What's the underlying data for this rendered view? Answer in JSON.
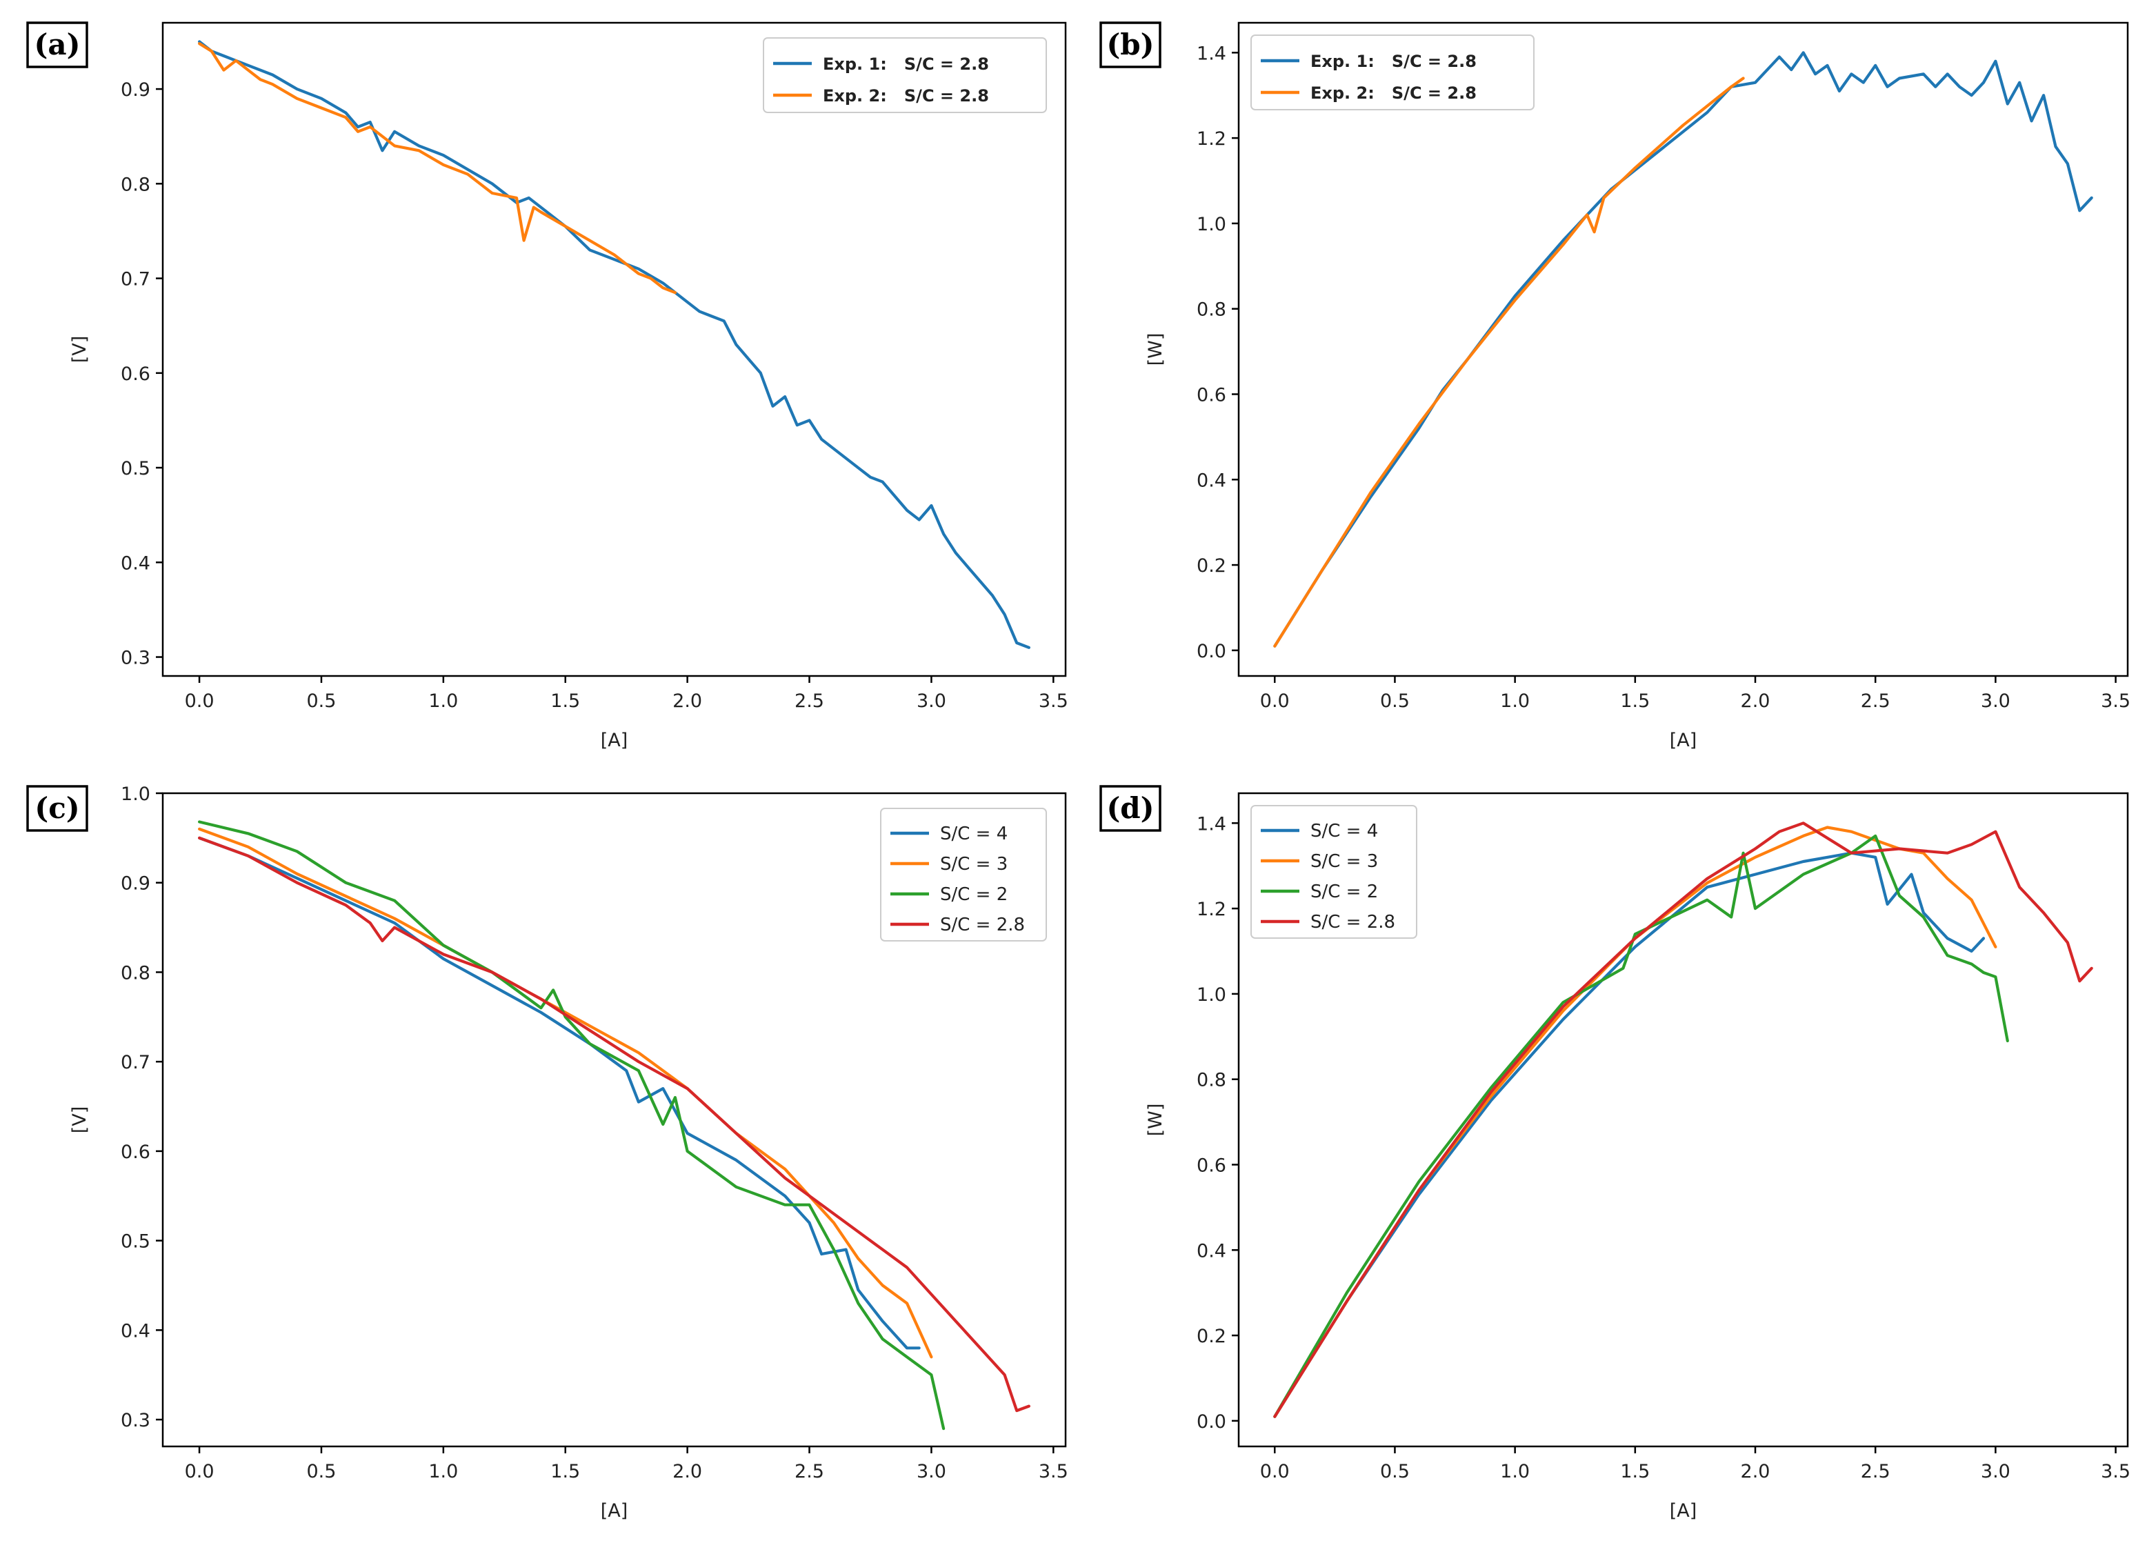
{
  "chart_data": [
    {
      "panel": "(a)",
      "type": "line",
      "xlabel": "[A]",
      "ylabel": "[V]",
      "xlim": [
        -0.15,
        3.55
      ],
      "ylim": [
        0.28,
        0.97
      ],
      "xticks": [
        0.0,
        0.5,
        1.0,
        1.5,
        2.0,
        2.5,
        3.0,
        3.5
      ],
      "xtick_labels": [
        "0.0",
        "0.5",
        "1.0",
        "1.5",
        "2.0",
        "2.5",
        "3.0",
        "3.5"
      ],
      "yticks": [
        0.3,
        0.4,
        0.5,
        0.6,
        0.7,
        0.8,
        0.9
      ],
      "ytick_labels": [
        "0.3",
        "0.4",
        "0.5",
        "0.6",
        "0.7",
        "0.8",
        "0.9"
      ],
      "legend_position": "upper-right",
      "legend_bold": true,
      "series": [
        {
          "name": "Exp. 1:   S/C = 2.8",
          "color": "#1f77b4",
          "x": [
            0.0,
            0.05,
            0.1,
            0.15,
            0.2,
            0.3,
            0.4,
            0.5,
            0.6,
            0.65,
            0.7,
            0.75,
            0.8,
            0.9,
            1.0,
            1.1,
            1.2,
            1.3,
            1.35,
            1.4,
            1.5,
            1.6,
            1.7,
            1.8,
            1.9,
            2.0,
            2.05,
            2.1,
            2.15,
            2.2,
            2.25,
            2.3,
            2.35,
            2.4,
            2.45,
            2.5,
            2.55,
            2.6,
            2.7,
            2.75,
            2.8,
            2.85,
            2.9,
            2.95,
            3.0,
            3.05,
            3.1,
            3.15,
            3.2,
            3.25,
            3.3,
            3.35,
            3.4
          ],
          "y": [
            0.95,
            0.94,
            0.935,
            0.93,
            0.925,
            0.915,
            0.9,
            0.89,
            0.875,
            0.86,
            0.865,
            0.835,
            0.855,
            0.84,
            0.83,
            0.815,
            0.8,
            0.78,
            0.785,
            0.775,
            0.755,
            0.73,
            0.72,
            0.71,
            0.695,
            0.675,
            0.665,
            0.66,
            0.655,
            0.63,
            0.615,
            0.6,
            0.565,
            0.575,
            0.545,
            0.55,
            0.53,
            0.52,
            0.5,
            0.49,
            0.485,
            0.47,
            0.455,
            0.445,
            0.46,
            0.43,
            0.41,
            0.395,
            0.38,
            0.365,
            0.345,
            0.315,
            0.31
          ]
        },
        {
          "name": "Exp. 2:   S/C = 2.8",
          "color": "#ff7f0e",
          "x": [
            0.0,
            0.05,
            0.1,
            0.15,
            0.2,
            0.25,
            0.3,
            0.4,
            0.5,
            0.6,
            0.65,
            0.7,
            0.8,
            0.9,
            1.0,
            1.1,
            1.2,
            1.3,
            1.33,
            1.37,
            1.4,
            1.5,
            1.6,
            1.7,
            1.8,
            1.85,
            1.9,
            1.95
          ],
          "y": [
            0.948,
            0.94,
            0.92,
            0.93,
            0.92,
            0.91,
            0.905,
            0.89,
            0.88,
            0.87,
            0.855,
            0.86,
            0.84,
            0.835,
            0.82,
            0.81,
            0.79,
            0.785,
            0.74,
            0.775,
            0.77,
            0.755,
            0.74,
            0.725,
            0.705,
            0.7,
            0.69,
            0.685
          ]
        }
      ]
    },
    {
      "panel": "(b)",
      "type": "line",
      "xlabel": "[A]",
      "ylabel": "[W]",
      "xlim": [
        -0.15,
        3.55
      ],
      "ylim": [
        -0.06,
        1.47
      ],
      "xticks": [
        0.0,
        0.5,
        1.0,
        1.5,
        2.0,
        2.5,
        3.0,
        3.5
      ],
      "xtick_labels": [
        "0.0",
        "0.5",
        "1.0",
        "1.5",
        "2.0",
        "2.5",
        "3.0",
        "3.5"
      ],
      "yticks": [
        0.0,
        0.2,
        0.4,
        0.6,
        0.8,
        1.0,
        1.2,
        1.4
      ],
      "ytick_labels": [
        "0.0",
        "0.2",
        "0.4",
        "0.6",
        "0.8",
        "1.0",
        "1.2",
        "1.4"
      ],
      "legend_position": "upper-left",
      "legend_bold": true,
      "series": [
        {
          "name": "Exp. 1:   S/C = 2.8",
          "color": "#1f77b4",
          "x": [
            0.0,
            0.2,
            0.4,
            0.6,
            0.7,
            0.8,
            1.0,
            1.2,
            1.4,
            1.6,
            1.8,
            1.9,
            2.0,
            2.1,
            2.15,
            2.2,
            2.25,
            2.3,
            2.35,
            2.4,
            2.45,
            2.5,
            2.55,
            2.6,
            2.7,
            2.75,
            2.8,
            2.85,
            2.9,
            2.95,
            3.0,
            3.05,
            3.1,
            3.15,
            3.2,
            3.25,
            3.3,
            3.35,
            3.4
          ],
          "y": [
            0.01,
            0.19,
            0.36,
            0.52,
            0.61,
            0.68,
            0.83,
            0.96,
            1.08,
            1.17,
            1.26,
            1.32,
            1.33,
            1.39,
            1.36,
            1.4,
            1.35,
            1.37,
            1.31,
            1.35,
            1.33,
            1.37,
            1.32,
            1.34,
            1.35,
            1.32,
            1.35,
            1.32,
            1.3,
            1.33,
            1.38,
            1.28,
            1.33,
            1.24,
            1.3,
            1.18,
            1.14,
            1.03,
            1.06
          ]
        },
        {
          "name": "Exp. 2:   S/C = 2.8",
          "color": "#ff7f0e",
          "x": [
            0.0,
            0.2,
            0.4,
            0.6,
            0.8,
            1.0,
            1.2,
            1.3,
            1.33,
            1.37,
            1.5,
            1.7,
            1.9,
            1.95
          ],
          "y": [
            0.01,
            0.19,
            0.37,
            0.53,
            0.68,
            0.82,
            0.95,
            1.02,
            0.98,
            1.06,
            1.13,
            1.23,
            1.32,
            1.34
          ]
        }
      ]
    },
    {
      "panel": "(c)",
      "type": "line",
      "xlabel": "[A]",
      "ylabel": "[V]",
      "xlim": [
        -0.15,
        3.55
      ],
      "ylim": [
        0.27,
        1.0
      ],
      "xticks": [
        0.0,
        0.5,
        1.0,
        1.5,
        2.0,
        2.5,
        3.0,
        3.5
      ],
      "xtick_labels": [
        "0.0",
        "0.5",
        "1.0",
        "1.5",
        "2.0",
        "2.5",
        "3.0",
        "3.5"
      ],
      "yticks": [
        0.3,
        0.4,
        0.5,
        0.6,
        0.7,
        0.8,
        0.9,
        1.0
      ],
      "ytick_labels": [
        "0.3",
        "0.4",
        "0.5",
        "0.6",
        "0.7",
        "0.8",
        "0.9",
        "1.0"
      ],
      "legend_position": "upper-right",
      "legend_bold": false,
      "series": [
        {
          "name": "S/C = 4",
          "color": "#1f77b4",
          "x": [
            0.0,
            0.2,
            0.4,
            0.6,
            0.8,
            1.0,
            1.2,
            1.4,
            1.6,
            1.75,
            1.8,
            1.9,
            2.0,
            2.2,
            2.4,
            2.5,
            2.55,
            2.65,
            2.7,
            2.8,
            2.9,
            2.95
          ],
          "y": [
            0.95,
            0.93,
            0.905,
            0.88,
            0.855,
            0.815,
            0.785,
            0.755,
            0.72,
            0.69,
            0.655,
            0.67,
            0.62,
            0.59,
            0.55,
            0.52,
            0.485,
            0.49,
            0.445,
            0.41,
            0.38,
            0.38
          ]
        },
        {
          "name": "S/C = 3",
          "color": "#ff7f0e",
          "x": [
            0.0,
            0.2,
            0.4,
            0.6,
            0.8,
            1.0,
            1.2,
            1.4,
            1.6,
            1.8,
            2.0,
            2.2,
            2.4,
            2.5,
            2.6,
            2.7,
            2.8,
            2.9,
            3.0
          ],
          "y": [
            0.96,
            0.94,
            0.91,
            0.885,
            0.86,
            0.83,
            0.8,
            0.77,
            0.74,
            0.71,
            0.67,
            0.62,
            0.58,
            0.55,
            0.52,
            0.48,
            0.45,
            0.43,
            0.37
          ]
        },
        {
          "name": "S/C = 2",
          "color": "#2ca02c",
          "x": [
            0.0,
            0.2,
            0.4,
            0.6,
            0.8,
            1.0,
            1.2,
            1.4,
            1.45,
            1.5,
            1.6,
            1.8,
            1.9,
            1.95,
            2.0,
            2.2,
            2.4,
            2.5,
            2.6,
            2.7,
            2.8,
            2.9,
            3.0,
            3.05
          ],
          "y": [
            0.968,
            0.955,
            0.935,
            0.9,
            0.88,
            0.83,
            0.8,
            0.76,
            0.78,
            0.75,
            0.72,
            0.69,
            0.63,
            0.66,
            0.6,
            0.56,
            0.54,
            0.54,
            0.49,
            0.43,
            0.39,
            0.37,
            0.35,
            0.29
          ]
        },
        {
          "name": "S/C = 2.8",
          "color": "#d62728",
          "x": [
            0.0,
            0.2,
            0.4,
            0.6,
            0.7,
            0.75,
            0.8,
            1.0,
            1.2,
            1.4,
            1.6,
            1.8,
            2.0,
            2.2,
            2.4,
            2.6,
            2.8,
            2.9,
            3.0,
            3.1,
            3.2,
            3.3,
            3.35,
            3.4
          ],
          "y": [
            0.95,
            0.93,
            0.9,
            0.875,
            0.855,
            0.835,
            0.85,
            0.82,
            0.8,
            0.77,
            0.735,
            0.7,
            0.67,
            0.62,
            0.57,
            0.53,
            0.49,
            0.47,
            0.44,
            0.41,
            0.38,
            0.35,
            0.31,
            0.315
          ]
        }
      ]
    },
    {
      "panel": "(d)",
      "type": "line",
      "xlabel": "[A]",
      "ylabel": "[W]",
      "xlim": [
        -0.15,
        3.55
      ],
      "ylim": [
        -0.06,
        1.47
      ],
      "xticks": [
        0.0,
        0.5,
        1.0,
        1.5,
        2.0,
        2.5,
        3.0,
        3.5
      ],
      "xtick_labels": [
        "0.0",
        "0.5",
        "1.0",
        "1.5",
        "2.0",
        "2.5",
        "3.0",
        "3.5"
      ],
      "yticks": [
        0.0,
        0.2,
        0.4,
        0.6,
        0.8,
        1.0,
        1.2,
        1.4
      ],
      "ytick_labels": [
        "0.0",
        "0.2",
        "0.4",
        "0.6",
        "0.8",
        "1.0",
        "1.2",
        "1.4"
      ],
      "legend_position": "upper-left",
      "legend_bold": false,
      "series": [
        {
          "name": "S/C = 4",
          "color": "#1f77b4",
          "x": [
            0.0,
            0.3,
            0.6,
            0.9,
            1.2,
            1.5,
            1.8,
            2.0,
            2.2,
            2.4,
            2.5,
            2.55,
            2.65,
            2.7,
            2.8,
            2.9,
            2.95
          ],
          "y": [
            0.01,
            0.28,
            0.53,
            0.75,
            0.94,
            1.11,
            1.25,
            1.28,
            1.31,
            1.33,
            1.32,
            1.21,
            1.28,
            1.19,
            1.13,
            1.1,
            1.13
          ]
        },
        {
          "name": "S/C = 3",
          "color": "#ff7f0e",
          "x": [
            0.0,
            0.3,
            0.6,
            0.9,
            1.2,
            1.5,
            1.8,
            2.0,
            2.2,
            2.3,
            2.4,
            2.5,
            2.6,
            2.7,
            2.8,
            2.9,
            3.0
          ],
          "y": [
            0.01,
            0.28,
            0.54,
            0.76,
            0.96,
            1.13,
            1.26,
            1.32,
            1.37,
            1.39,
            1.38,
            1.36,
            1.34,
            1.33,
            1.27,
            1.22,
            1.11
          ]
        },
        {
          "name": "S/C = 2",
          "color": "#2ca02c",
          "x": [
            0.0,
            0.3,
            0.6,
            0.9,
            1.2,
            1.45,
            1.5,
            1.8,
            1.9,
            1.95,
            2.0,
            2.2,
            2.4,
            2.5,
            2.6,
            2.7,
            2.8,
            2.9,
            2.95,
            3.0,
            3.05
          ],
          "y": [
            0.01,
            0.3,
            0.56,
            0.78,
            0.98,
            1.06,
            1.14,
            1.22,
            1.18,
            1.33,
            1.2,
            1.28,
            1.33,
            1.37,
            1.23,
            1.18,
            1.09,
            1.07,
            1.05,
            1.04,
            0.89
          ]
        },
        {
          "name": "S/C = 2.8",
          "color": "#d62728",
          "x": [
            0.0,
            0.3,
            0.6,
            0.9,
            1.2,
            1.5,
            1.8,
            2.0,
            2.1,
            2.2,
            2.4,
            2.6,
            2.8,
            2.9,
            3.0,
            3.1,
            3.2,
            3.3,
            3.35,
            3.4
          ],
          "y": [
            0.01,
            0.28,
            0.54,
            0.77,
            0.97,
            1.13,
            1.27,
            1.34,
            1.38,
            1.4,
            1.33,
            1.34,
            1.33,
            1.35,
            1.38,
            1.25,
            1.19,
            1.12,
            1.03,
            1.06
          ]
        }
      ]
    }
  ]
}
